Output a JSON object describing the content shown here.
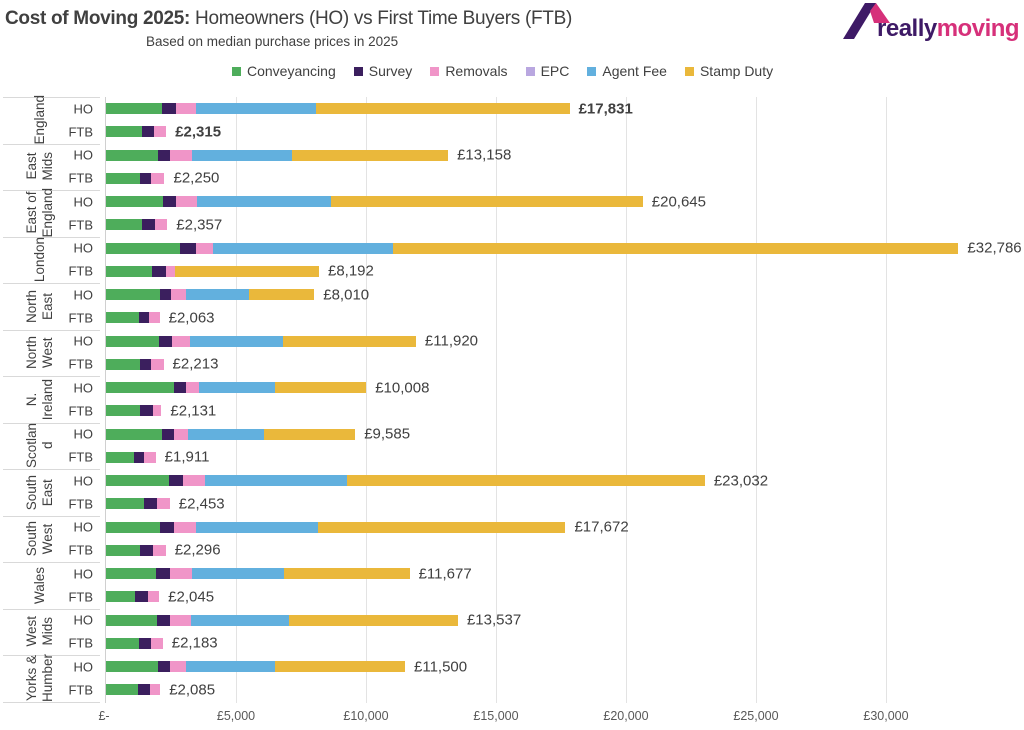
{
  "header": {
    "title_bold": "Cost of Moving 2025:",
    "title_rest": " Homeowners (HO) vs First Time Buyers (FTB)",
    "subtitle": "Based on median purchase prices  in 2025",
    "logo_text_1": "really",
    "logo_text_2": "moving"
  },
  "colors": {
    "Conveyancing": "#4EAD5B",
    "Survey": "#3B1F5E",
    "Removals": "#F095C8",
    "EPC": "#B9A7E0",
    "Agent Fee": "#62B0DE",
    "Stamp Duty": "#EAB83B",
    "logo_purple": "#3E1A66",
    "logo_pink": "#D6307A"
  },
  "chart_data": {
    "type": "bar",
    "orientation": "horizontal",
    "stacked": true,
    "title": "Cost of Moving 2025: Homeowners (HO) vs First Time Buyers (FTB)",
    "subtitle": "Based on median purchase prices  in 2025",
    "legend": [
      "Conveyancing",
      "Survey",
      "Removals",
      "EPC",
      "Agent Fee",
      "Stamp Duty"
    ],
    "legend_position": "top",
    "xlim": [
      0,
      33000
    ],
    "x_ticks": [
      0,
      5000,
      10000,
      15000,
      20000,
      25000,
      30000
    ],
    "x_tick_labels": [
      "£-",
      "£5,000",
      "£10,000",
      "£15,000",
      "£20,000",
      "£25,000",
      "£30,000"
    ],
    "grid": "vertical",
    "groups": [
      {
        "region": "England",
        "rows": [
          {
            "label": "HO",
            "values": [
              2167,
              513,
              781,
              0,
              4616,
              9754
            ],
            "total": "£17,831",
            "bold": true
          },
          {
            "label": "FTB",
            "values": [
              1397,
              462,
              456,
              0,
              0,
              0
            ],
            "total": "£2,315",
            "bold": true
          }
        ]
      },
      {
        "region": "East\nMids",
        "rows": [
          {
            "label": "HO",
            "values": [
              2013,
              461,
              821,
              0,
              3859,
              6004
            ],
            "total": "£13,158"
          },
          {
            "label": "FTB",
            "values": [
              1295,
              423,
              532,
              0,
              0,
              0
            ],
            "total": "£2,250"
          }
        ]
      },
      {
        "region": "East of\nEngland",
        "rows": [
          {
            "label": "HO",
            "values": [
              2192,
              513,
              795,
              0,
              5154,
              11991
            ],
            "total": "£20,645"
          },
          {
            "label": "FTB",
            "values": [
              1397,
              488,
              472,
              0,
              0,
              0
            ],
            "total": "£2,357"
          }
        ]
      },
      {
        "region": "London",
        "rows": [
          {
            "label": "HO",
            "values": [
              2846,
              615,
              641,
              0,
              6936,
              21748
            ],
            "total": "£32,786"
          },
          {
            "label": "FTB",
            "values": [
              1769,
              526,
              372,
              0,
              0,
              5525
            ],
            "total": "£8,192"
          }
        ]
      },
      {
        "region": "North\nEast",
        "rows": [
          {
            "label": "HO",
            "values": [
              2064,
              436,
              564,
              0,
              2436,
              2510
            ],
            "total": "£8,010"
          },
          {
            "label": "FTB",
            "values": [
              1282,
              385,
              396,
              0,
              0,
              0
            ],
            "total": "£2,063"
          }
        ]
      },
      {
        "region": "North\nWest",
        "rows": [
          {
            "label": "HO",
            "values": [
              2038,
              500,
              680,
              0,
              3589,
              5113
            ],
            "total": "£11,920"
          },
          {
            "label": "FTB",
            "values": [
              1320,
              424,
              469,
              0,
              0,
              0
            ],
            "total": "£2,213"
          }
        ]
      },
      {
        "region": "N.\nIreland",
        "rows": [
          {
            "label": "HO",
            "values": [
              2602,
              488,
              474,
              0,
              2923,
              3521
            ],
            "total": "£10,008"
          },
          {
            "label": "FTB",
            "values": [
              1320,
              475,
              336,
              0,
              0,
              0
            ],
            "total": "£2,131"
          }
        ]
      },
      {
        "region": "Scotlan\nd",
        "rows": [
          {
            "label": "HO",
            "values": [
              2141,
              461,
              565,
              0,
              2910,
              3508
            ],
            "total": "£9,585"
          },
          {
            "label": "FTB",
            "values": [
              1064,
              410,
              437,
              0,
              0,
              0
            ],
            "total": "£1,911"
          }
        ]
      },
      {
        "region": "South\nEast",
        "rows": [
          {
            "label": "HO",
            "values": [
              2410,
              539,
              846,
              0,
              5461,
              13776
            ],
            "total": "£23,032"
          },
          {
            "label": "FTB",
            "values": [
              1474,
              487,
              492,
              0,
              0,
              0
            ],
            "total": "£2,453"
          }
        ]
      },
      {
        "region": "South\nWest",
        "rows": [
          {
            "label": "HO",
            "values": [
              2064,
              538,
              872,
              0,
              4680,
              9518
            ],
            "total": "£17,672"
          },
          {
            "label": "FTB",
            "values": [
              1320,
              500,
              476,
              0,
              0,
              0
            ],
            "total": "£2,296"
          }
        ]
      },
      {
        "region": "Wales",
        "rows": [
          {
            "label": "HO",
            "values": [
              1936,
              513,
              846,
              0,
              3551,
              4831
            ],
            "total": "£11,677"
          },
          {
            "label": "FTB",
            "values": [
              1128,
              475,
              442,
              0,
              0,
              0
            ],
            "total": "£2,045"
          }
        ]
      },
      {
        "region": "West\nMids",
        "rows": [
          {
            "label": "HO",
            "values": [
              1974,
              475,
              807,
              0,
              3769,
              6512
            ],
            "total": "£13,537"
          },
          {
            "label": "FTB",
            "values": [
              1282,
              436,
              465,
              0,
              0,
              0
            ],
            "total": "£2,183"
          }
        ]
      },
      {
        "region": "Yorks &\nHumber",
        "rows": [
          {
            "label": "HO",
            "values": [
              2000,
              474,
              590,
              0,
              3423,
              5013
            ],
            "total": "£11,500"
          },
          {
            "label": "FTB",
            "values": [
              1231,
              461,
              393,
              0,
              0,
              0
            ],
            "total": "£2,085"
          }
        ]
      }
    ]
  }
}
